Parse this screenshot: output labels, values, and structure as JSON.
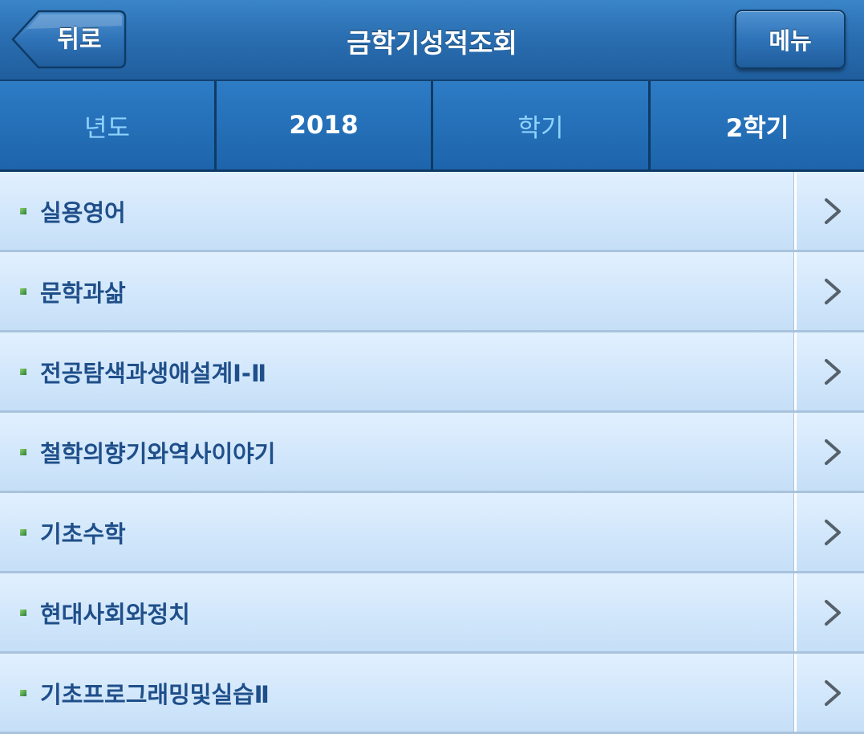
{
  "header": {
    "back_label": "뒤로",
    "title": "금학기성적조회",
    "menu_label": "메뉴"
  },
  "filter": {
    "year_label": "년도",
    "year_value": "2018",
    "semester_label": "학기",
    "semester_value": "2학기"
  },
  "courses": [
    "실용영어",
    "문학과삶",
    "전공탐색과생애설계Ⅰ-Ⅱ",
    "철학의향기와역사이야기",
    "기초수학",
    "현대사회와정치",
    "기초프로그래밍및실습Ⅱ"
  ],
  "colors": {
    "header_blue": "#2a6fb2",
    "label_cyan": "#8fd3ff",
    "course_text": "#1f4f8a",
    "row_bg": "#d6e9fb"
  },
  "icons": {
    "row_arrow": "chevron-right-icon",
    "bullet": "square-bullet-icon"
  }
}
